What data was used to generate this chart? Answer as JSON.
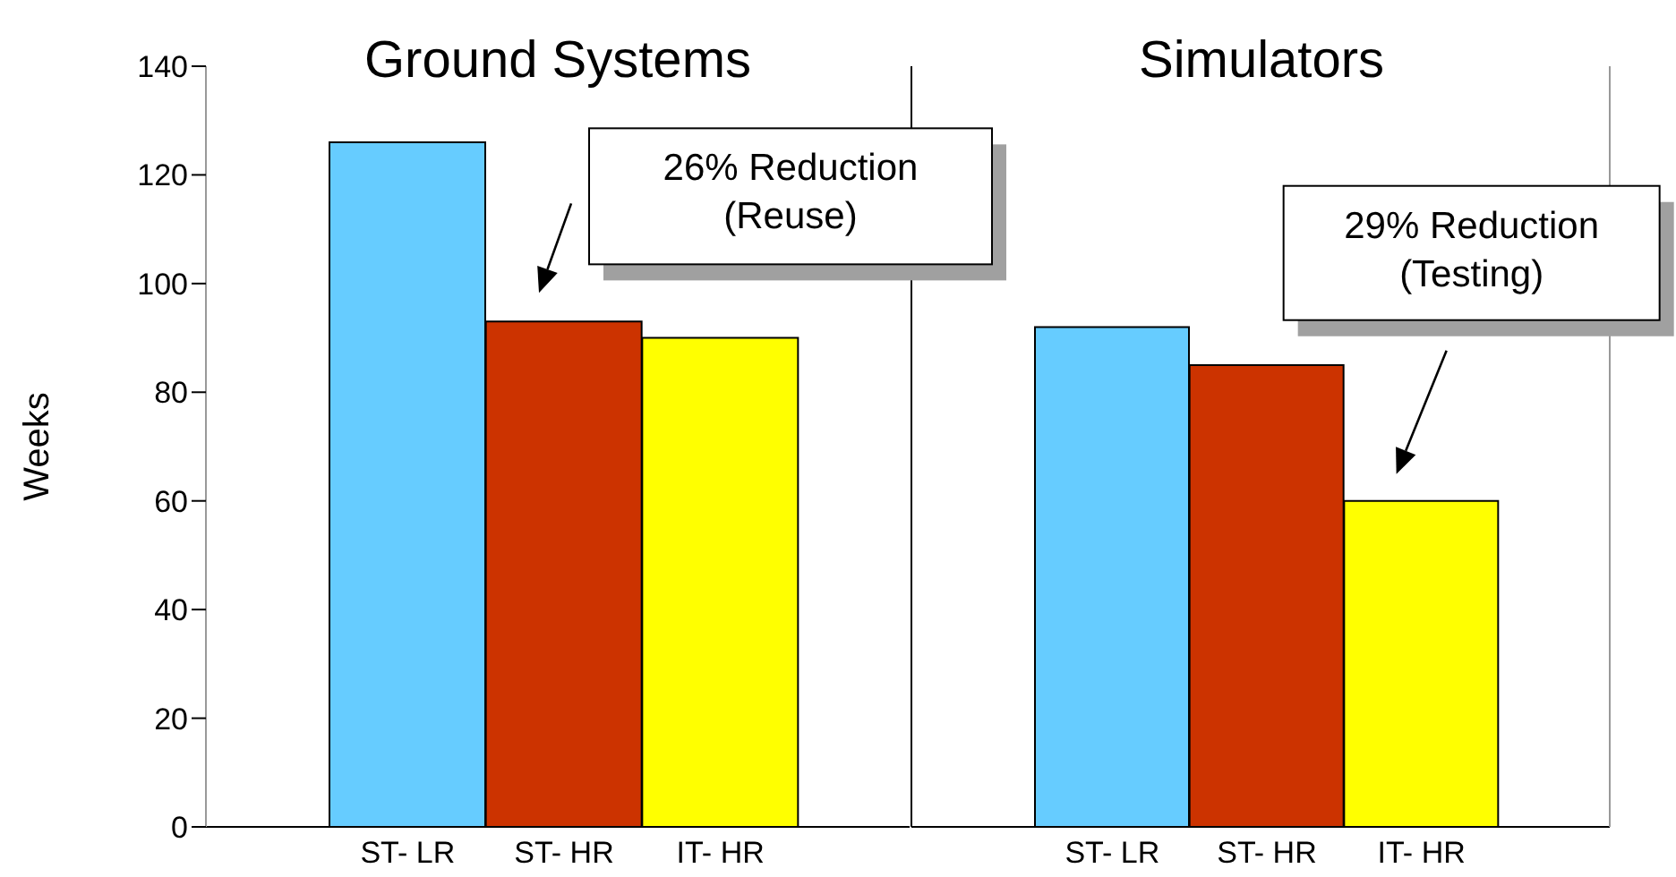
{
  "chart_data": [
    {
      "type": "bar",
      "title": "Ground Systems",
      "ylabel": "Weeks",
      "categories": [
        "ST- LR",
        "ST- HR",
        "IT- HR"
      ],
      "values": [
        126,
        93,
        90
      ],
      "colors": [
        "#66ccff",
        "#cc3300",
        "#ffff00"
      ],
      "ylim": [
        0,
        140
      ],
      "yticks": [
        0,
        20,
        40,
        60,
        80,
        100,
        120,
        140
      ],
      "grid": false,
      "legend": false,
      "annotations": [
        "26% Reduction\n(Reuse)"
      ]
    },
    {
      "type": "bar",
      "title": "Simulators",
      "categories": [
        "ST- LR",
        "ST- HR",
        "IT- HR"
      ],
      "values": [
        92,
        85,
        60
      ],
      "colors": [
        "#66ccff",
        "#cc3300",
        "#ffff00"
      ],
      "ylim": [
        0,
        140
      ],
      "yticks": [
        0,
        20,
        40,
        60,
        80,
        100,
        120,
        140
      ],
      "grid": false,
      "legend": false,
      "tick_labels": "x",
      "annotations": [
        "29% Reduction\n(Testing)"
      ]
    }
  ]
}
